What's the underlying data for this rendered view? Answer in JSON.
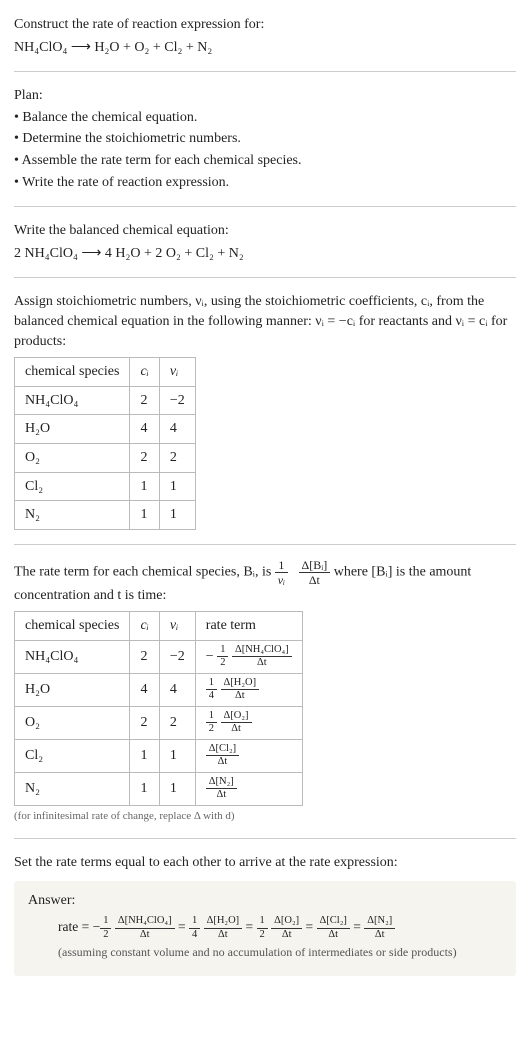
{
  "intro": {
    "line1": "Construct the rate of reaction expression for:",
    "eq": "NH₄ClO₄  ⟶  H₂O + O₂ + Cl₂ + N₂"
  },
  "plan": {
    "title": "Plan:",
    "items": [
      "• Balance the chemical equation.",
      "• Determine the stoichiometric numbers.",
      "• Assemble the rate term for each chemical species.",
      "• Write the rate of reaction expression."
    ]
  },
  "balanced": {
    "line1": "Write the balanced chemical equation:",
    "eq": "2 NH₄ClO₄  ⟶  4 H₂O + 2 O₂ + Cl₂ + N₂"
  },
  "stoich": {
    "text1": "Assign stoichiometric numbers, νᵢ, using the stoichiometric coefficients, cᵢ, from the balanced chemical equation in the following manner: νᵢ = −cᵢ for reactants and νᵢ = cᵢ for products:",
    "headers": [
      "chemical species",
      "cᵢ",
      "νᵢ"
    ],
    "rows": [
      [
        "NH₄ClO₄",
        "2",
        "−2"
      ],
      [
        "H₂O",
        "4",
        "4"
      ],
      [
        "O₂",
        "2",
        "2"
      ],
      [
        "Cl₂",
        "1",
        "1"
      ],
      [
        "N₂",
        "1",
        "1"
      ]
    ]
  },
  "rate_term_intro": {
    "pre": "The rate term for each chemical species, Bᵢ, is ",
    "frac1_num": "1",
    "frac1_den": "νᵢ",
    "frac2_num": "Δ[Bᵢ]",
    "frac2_den": "Δt",
    "post": " where [Bᵢ] is the amount concentration and t is time:"
  },
  "rate_table": {
    "headers": [
      "chemical species",
      "cᵢ",
      "νᵢ",
      "rate term"
    ],
    "rows": [
      {
        "sp": "NH₄ClO₄",
        "c": "2",
        "v": "−2",
        "pre": "−",
        "coef_num": "1",
        "coef_den": "2",
        "num": "Δ[NH₄ClO₄]",
        "den": "Δt"
      },
      {
        "sp": "H₂O",
        "c": "4",
        "v": "4",
        "pre": "",
        "coef_num": "1",
        "coef_den": "4",
        "num": "Δ[H₂O]",
        "den": "Δt"
      },
      {
        "sp": "O₂",
        "c": "2",
        "v": "2",
        "pre": "",
        "coef_num": "1",
        "coef_den": "2",
        "num": "Δ[O₂]",
        "den": "Δt"
      },
      {
        "sp": "Cl₂",
        "c": "1",
        "v": "1",
        "pre": "",
        "coef_num": "",
        "coef_den": "",
        "num": "Δ[Cl₂]",
        "den": "Δt"
      },
      {
        "sp": "N₂",
        "c": "1",
        "v": "1",
        "pre": "",
        "coef_num": "",
        "coef_den": "",
        "num": "Δ[N₂]",
        "den": "Δt"
      }
    ],
    "note": "(for infinitesimal rate of change, replace Δ with d)"
  },
  "set_equal": "Set the rate terms equal to each other to arrive at the rate expression:",
  "answer": {
    "label": "Answer:",
    "prefix": "rate = ",
    "terms": [
      {
        "neg": "−",
        "cnum": "1",
        "cden": "2",
        "num": "Δ[NH₄ClO₄]",
        "den": "Δt"
      },
      {
        "neg": "",
        "cnum": "1",
        "cden": "4",
        "num": "Δ[H₂O]",
        "den": "Δt"
      },
      {
        "neg": "",
        "cnum": "1",
        "cden": "2",
        "num": "Δ[O₂]",
        "den": "Δt"
      },
      {
        "neg": "",
        "cnum": "",
        "cden": "",
        "num": "Δ[Cl₂]",
        "den": "Δt"
      },
      {
        "neg": "",
        "cnum": "",
        "cden": "",
        "num": "Δ[N₂]",
        "den": "Δt"
      }
    ],
    "note": "(assuming constant volume and no accumulation of intermediates or side products)"
  }
}
